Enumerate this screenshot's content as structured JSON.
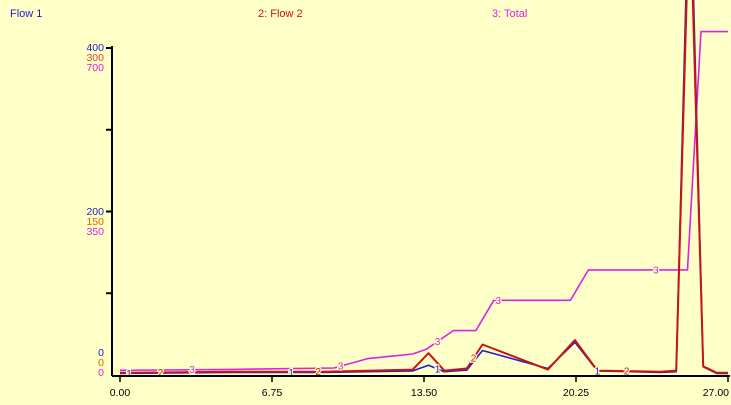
{
  "colors": {
    "flow1": "#2020c8",
    "flow2": "#c81414",
    "total": "#e020e0",
    "background": "#ffffc8",
    "axis": "#000000",
    "tick_orange": "#e06000"
  },
  "chart_data": {
    "type": "line",
    "legend": [
      {
        "label": "Flow 1",
        "color": "#2020c8"
      },
      {
        "label": "2: Flow 2",
        "color": "#c81414"
      },
      {
        "label": "3: Total",
        "color": "#e020e0"
      }
    ],
    "x_ticks": [
      "0.00",
      "6.75",
      "13.50",
      "20.25",
      "27.00"
    ],
    "x_range": [
      0,
      27
    ],
    "y_axes": [
      {
        "color": "#2020c8",
        "max": 400,
        "ticks": [
          "400",
          "200",
          "0"
        ]
      },
      {
        "color": "#e04040",
        "max": 300,
        "ticks": [
          "300",
          "150",
          "0"
        ]
      },
      {
        "color": "#e020e0",
        "max": 700,
        "ticks": [
          "700",
          "350",
          "0"
        ]
      }
    ],
    "series": [
      {
        "name": "Flow 1",
        "marker": "1",
        "color": "#2020c8",
        "y_max": 400,
        "x": [
          0,
          5,
          9,
          13,
          13.7,
          14.4,
          15.4,
          16.1,
          19,
          20.2,
          21.2,
          24,
          24.7,
          25.3,
          25.9,
          26.5,
          27
        ],
        "y": [
          2,
          3,
          3,
          5,
          12,
          4,
          6,
          30,
          8,
          40,
          5,
          3,
          4,
          640,
          10,
          2,
          2
        ],
        "marker_x": [
          0.4,
          7.6,
          14.1,
          21.2
        ]
      },
      {
        "name": "Flow 2",
        "marker": "2",
        "color": "#c81414",
        "y_max": 300,
        "x": [
          0,
          5,
          9,
          13,
          13.7,
          14.4,
          15.4,
          16.1,
          19,
          20.2,
          21.2,
          24,
          24.7,
          25.3,
          25.9,
          26.5,
          27
        ],
        "y": [
          2,
          3,
          3,
          5,
          20,
          4,
          6,
          28,
          5,
          32,
          4,
          3,
          4,
          445,
          8,
          2,
          2
        ],
        "marker_x": [
          1.8,
          8.8,
          15.7,
          22.5
        ]
      },
      {
        "name": "Total",
        "marker": "3",
        "color": "#e020e0",
        "y_max": 700,
        "x": [
          0,
          5,
          9.5,
          11,
          12,
          13,
          13.6,
          14.8,
          15.8,
          16.6,
          20,
          20.8,
          24.5,
          25.2,
          25.8,
          27
        ],
        "y": [
          10,
          12,
          15,
          35,
          40,
          45,
          55,
          95,
          95,
          160,
          160,
          225,
          225,
          225,
          735,
          735
        ],
        "marker_x": [
          3.2,
          9.8,
          14.1,
          16.8,
          23.8
        ]
      }
    ]
  }
}
